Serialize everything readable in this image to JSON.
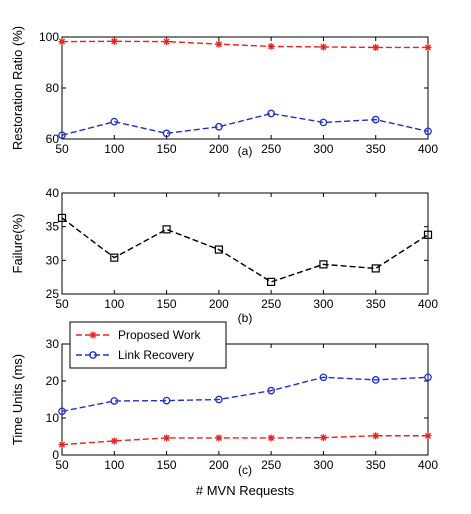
{
  "chart_data": [
    {
      "type": "line",
      "panel_label": "(a)",
      "ylabel": "Restoration Ratio (%)",
      "x": [
        50,
        100,
        150,
        200,
        250,
        300,
        350,
        400
      ],
      "xlim": [
        50,
        400
      ],
      "ylim": [
        60,
        100
      ],
      "yticks": [
        60,
        80,
        100
      ],
      "grid": false,
      "series": [
        {
          "name": "Proposed Work",
          "color": "#e8231f",
          "marker": "star",
          "dash": "dashed",
          "values": [
            98.2,
            98.3,
            98.2,
            97.2,
            96.3,
            96.1,
            95.9,
            95.9
          ]
        },
        {
          "name": "Link Recovery",
          "color": "#2230c8",
          "marker": "circle",
          "dash": "dashed",
          "values": [
            61.5,
            66.8,
            62.2,
            64.8,
            70.0,
            66.5,
            67.6,
            63.0
          ]
        }
      ]
    },
    {
      "type": "line",
      "panel_label": "(b)",
      "ylabel": "Failure(%)",
      "x": [
        50,
        100,
        150,
        200,
        250,
        300,
        350,
        400
      ],
      "xlim": [
        50,
        400
      ],
      "ylim": [
        25,
        40
      ],
      "yticks": [
        25,
        30,
        35,
        40
      ],
      "grid": false,
      "series": [
        {
          "name": "",
          "color": "#000000",
          "marker": "square",
          "dash": "dashed",
          "values": [
            36.3,
            30.4,
            34.6,
            31.6,
            26.8,
            29.4,
            28.8,
            33.8
          ]
        }
      ]
    },
    {
      "type": "line",
      "panel_label": "(c)",
      "ylabel": "Time Units (ms)",
      "xlabel": "# MVN Requests",
      "x": [
        50,
        100,
        150,
        200,
        250,
        300,
        350,
        400
      ],
      "xlim": [
        50,
        400
      ],
      "ylim": [
        0,
        30
      ],
      "yticks": [
        0,
        10,
        20,
        30
      ],
      "grid": false,
      "legend": "top-left",
      "series": [
        {
          "name": "Proposed Work",
          "color": "#e8231f",
          "marker": "star",
          "dash": "dashed",
          "values": [
            2.8,
            3.8,
            4.6,
            4.6,
            4.6,
            4.7,
            5.2,
            5.2
          ]
        },
        {
          "name": "Link Recovery",
          "color": "#2230c8",
          "marker": "circle",
          "dash": "dashed",
          "values": [
            11.8,
            14.6,
            14.7,
            15.0,
            17.4,
            21.0,
            20.3,
            21.0
          ]
        }
      ]
    }
  ]
}
